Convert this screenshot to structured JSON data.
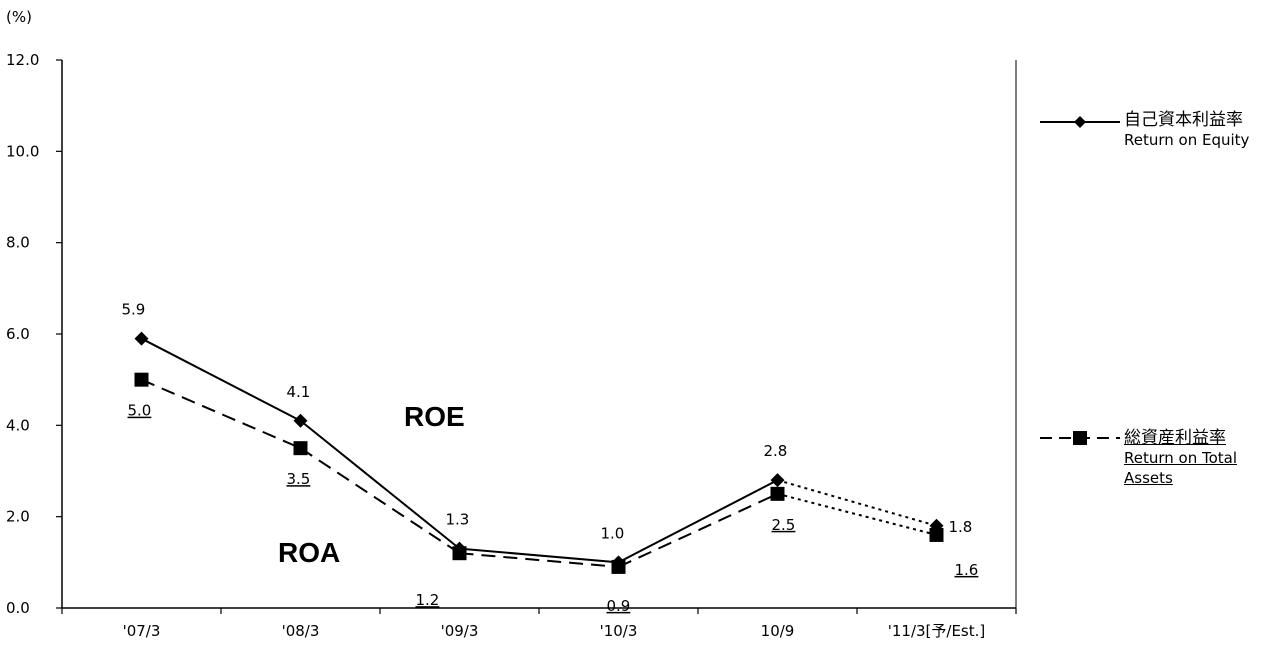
{
  "chart_data": {
    "type": "line",
    "unit_label": "(%)",
    "categories": [
      "'07/3",
      "'08/3",
      "'09/3",
      "'10/3",
      "10/9",
      "'11/3[予/Est.]"
    ],
    "ylim": [
      0,
      12
    ],
    "yticks": [
      "0.0",
      "2.0",
      "4.0",
      "6.0",
      "8.0",
      "10.0",
      "12.0"
    ],
    "estimate_from_index": 4,
    "series": [
      {
        "name": "自己資本利益率",
        "name_en": "Return on Equity",
        "values": [
          5.9,
          4.1,
          1.3,
          1.0,
          2.8,
          1.8
        ],
        "labels": [
          "5.9",
          "4.1",
          "1.3",
          "1.0",
          "2.8",
          "1.8"
        ],
        "marker": "diamond",
        "line_style": "solid"
      },
      {
        "name": "総資産利益率",
        "name_en_line1": "Return on Total",
        "name_en_line2": "Assets",
        "values": [
          5.0,
          3.5,
          1.2,
          0.9,
          2.5,
          1.6
        ],
        "labels": [
          "5.0",
          "3.5",
          "1.2",
          "0.9",
          "2.5",
          "1.6"
        ],
        "marker": "square",
        "line_style": "dashed"
      }
    ],
    "annotations": {
      "roe": "ROE",
      "roa": "ROA"
    },
    "grid": false,
    "legend_position": "right"
  }
}
